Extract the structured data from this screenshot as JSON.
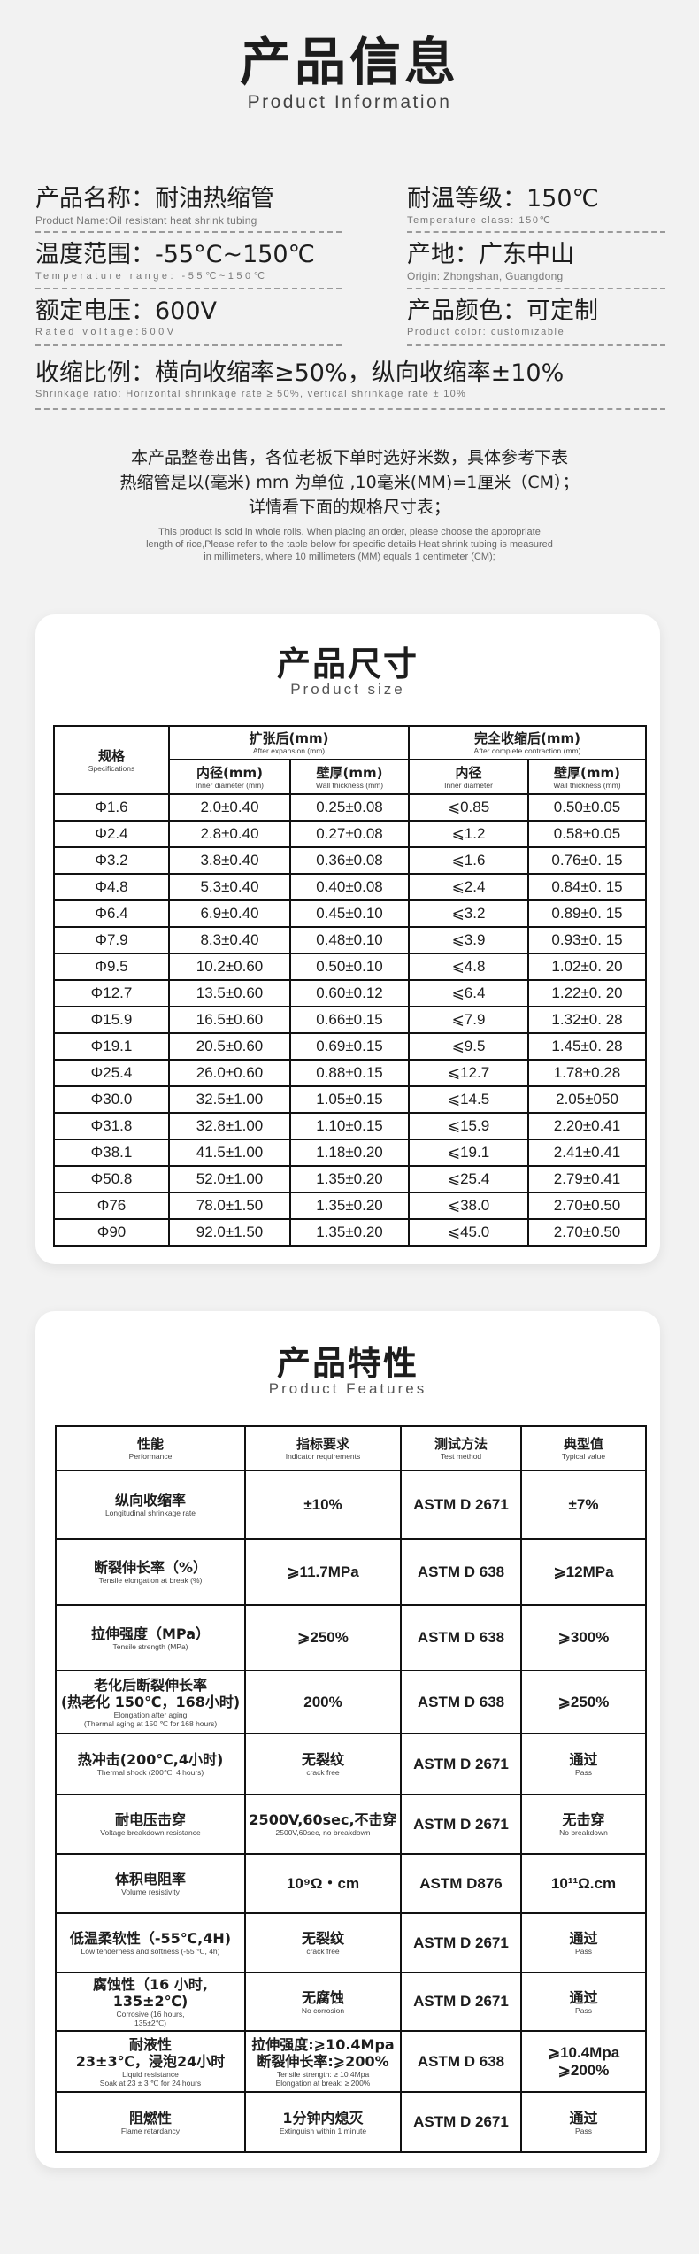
{
  "header": {
    "title": "产品信息",
    "subtitle": "Product Information"
  },
  "info": [
    {
      "label": "产品名称：耐油热缩管",
      "sub": "Product Name:Oil resistant heat shrink tubing"
    },
    {
      "label": "耐温等级：150℃",
      "sub": "Temperature class: 150℃"
    },
    {
      "label": "温度范围：-55°C~150℃",
      "sub": "Temperature range: -55℃~150℃"
    },
    {
      "label": "产地：广东中山",
      "sub": "Origin: Zhongshan, Guangdong"
    },
    {
      "label": "额定电压：600V",
      "sub": "Rated voltage:600V"
    },
    {
      "label": "产品颜色：可定制",
      "sub": "Product color: customizable"
    },
    {
      "label": "收缩比例：横向收缩率≥50%，纵向收缩率±10%",
      "sub": "Shrinkage ratio: Horizontal shrinkage rate ≥ 50%, vertical shrinkage rate ± 10%"
    }
  ],
  "notice": {
    "cn": [
      "本产品整卷出售，各位老板下单时选好米数，具体参考下表",
      "热缩管是以(毫米) mm 为单位 ,10毫米(MM)=1厘米（CM）；",
      "详情看下面的规格尺寸表；"
    ],
    "en": [
      "This product is sold in whole rolls. When placing an order, please choose the appropriate",
      "length of rice,Please refer to the table below for specific details Heat shrink tubing is measured",
      "in millimeters, where 10 millimeters (MM) equals 1 centimeter (CM);"
    ]
  },
  "size_section": {
    "title": "产品尺寸",
    "subtitle": "Product size",
    "headers": {
      "spec": {
        "cn": "规格",
        "en": "Specifications"
      },
      "expanded": {
        "cn": "扩张后(mm)",
        "en": "After expansion (mm)"
      },
      "recovered": {
        "cn": "完全收缩后(mm)",
        "en": "After complete contraction (mm)"
      },
      "exp_id": {
        "cn": "内径(mm)",
        "en": "Inner diameter (mm)"
      },
      "exp_wall": {
        "cn": "壁厚(mm)",
        "en": "Wall thickness (mm)"
      },
      "rec_id": {
        "cn": "内径",
        "en": "Inner diameter"
      },
      "rec_wall": {
        "cn": "壁厚(mm)",
        "en": "Wall thickness (mm)"
      }
    },
    "rows": [
      [
        "Φ1.6",
        "2.0±0.40",
        "0.25±0.08",
        "⩽0.85",
        "0.50±0.05"
      ],
      [
        "Φ2.4",
        "2.8±0.40",
        "0.27±0.08",
        "⩽1.2",
        "0.58±0.05"
      ],
      [
        "Φ3.2",
        "3.8±0.40",
        "0.36±0.08",
        "⩽1.6",
        "0.76±0. 15"
      ],
      [
        "Φ4.8",
        "5.3±0.40",
        "0.40±0.08",
        "⩽2.4",
        "0.84±0. 15"
      ],
      [
        "Φ6.4",
        "6.9±0.40",
        "0.45±0.10",
        "⩽3.2",
        "0.89±0. 15"
      ],
      [
        "Φ7.9",
        "8.3±0.40",
        "0.48±0.10",
        "⩽3.9",
        "0.93±0. 15"
      ],
      [
        "Φ9.5",
        "10.2±0.60",
        "0.50±0.10",
        "⩽4.8",
        "1.02±0. 20"
      ],
      [
        "Φ12.7",
        "13.5±0.60",
        "0.60±0.12",
        "⩽6.4",
        "1.22±0. 20"
      ],
      [
        "Φ15.9",
        "16.5±0.60",
        "0.66±0.15",
        "⩽7.9",
        "1.32±0. 28"
      ],
      [
        "Φ19.1",
        "20.5±0.60",
        "0.69±0.15",
        "⩽9.5",
        "1.45±0. 28"
      ],
      [
        "Φ25.4",
        "26.0±0.60",
        "0.88±0.15",
        "⩽12.7",
        "1.78±0.28"
      ],
      [
        "Φ30.0",
        "32.5±1.00",
        "1.05±0.15",
        "⩽14.5",
        "2.05±050"
      ],
      [
        "Φ31.8",
        "32.8±1.00",
        "1.10±0.15",
        "⩽15.9",
        "2.20±0.41"
      ],
      [
        "Φ38.1",
        "41.5±1.00",
        "1.18±0.20",
        "⩽19.1",
        "2.41±0.41"
      ],
      [
        "Φ50.8",
        "52.0±1.00",
        "1.35±0.20",
        "⩽25.4",
        "2.79±0.41"
      ],
      [
        "Φ76",
        "78.0±1.50",
        "1.35±0.20",
        "⩽38.0",
        "2.70±0.50"
      ],
      [
        "Φ90",
        "92.0±1.50",
        "1.35±0.20",
        "⩽45.0",
        "2.70±0.50"
      ]
    ]
  },
  "feature_section": {
    "title": "产品特性",
    "subtitle": "Product Features",
    "headers": [
      {
        "cn": "性能",
        "en": "Performance"
      },
      {
        "cn": "指标要求",
        "en": "Indicator requirements"
      },
      {
        "cn": "测试方法",
        "en": "Test method"
      },
      {
        "cn": "典型值",
        "en": "Typical value"
      }
    ],
    "rows": [
      {
        "perf": [
          "纵向收缩率"
        ],
        "perf_en": [
          "Longitudinal shrinkage rate"
        ],
        "req": [
          "±10%"
        ],
        "req_en": [],
        "method": "ASTM D 2671",
        "typ": [
          "±7%"
        ],
        "typ_en": ""
      },
      {
        "perf": [
          "断裂伸长率（%）"
        ],
        "perf_en": [
          "Tensile elongation at break (%)"
        ],
        "req": [
          "⩾11.7MPa"
        ],
        "req_en": [],
        "method": "ASTM D 638",
        "typ": [
          "⩾12MPa"
        ],
        "typ_en": ""
      },
      {
        "perf": [
          "拉伸强度（MPa）"
        ],
        "perf_en": [
          "Tensile strength (MPa)"
        ],
        "req": [
          "⩾250%"
        ],
        "req_en": [],
        "method": "ASTM D 638",
        "typ": [
          "⩾300%"
        ],
        "typ_en": ""
      },
      {
        "perf": [
          "老化后断裂伸长率",
          "(热老化 150℃，168小时)"
        ],
        "perf_en": [
          "Elongation after aging",
          "(Thermal aging at 150 ℃ for 168 hours)"
        ],
        "req": [
          "200%"
        ],
        "req_en": [],
        "method": "ASTM D 638",
        "typ": [
          "⩾250%"
        ],
        "typ_en": ""
      },
      {
        "perf": [
          "热冲击(200℃,4小时)"
        ],
        "perf_en": [
          "Thermal shock (200℃, 4 hours)"
        ],
        "req": [
          "无裂纹"
        ],
        "req_en": [
          "crack free"
        ],
        "method": "ASTM D 2671",
        "typ": [
          "通过"
        ],
        "typ_en": "Pass"
      },
      {
        "perf": [
          "耐电压击穿"
        ],
        "perf_en": [
          "Voltage breakdown resistance"
        ],
        "req": [
          "2500V,60sec,不击穿"
        ],
        "req_en": [
          "2500V,60sec, no breakdown"
        ],
        "method": "ASTM D 2671",
        "typ": [
          "无击穿"
        ],
        "typ_en": "No breakdown"
      },
      {
        "perf": [
          "体积电阻率"
        ],
        "perf_en": [
          "Volume resistivity"
        ],
        "req": [
          "10⁹Ω・cm"
        ],
        "req_en": [],
        "method": "ASTM D876",
        "typ": [
          "10¹¹Ω.cm"
        ],
        "typ_en": ""
      },
      {
        "perf": [
          "低温柔软性（-55℃,4H)"
        ],
        "perf_en": [
          "Low tenderness and softness (-55 ℃, 4h)"
        ],
        "req": [
          "无裂纹"
        ],
        "req_en": [
          "crack free"
        ],
        "method": "ASTM D 2671",
        "typ": [
          "通过"
        ],
        "typ_en": "Pass"
      },
      {
        "perf": [
          "腐蚀性（16 小时,",
          "135±2℃)"
        ],
        "perf_en": [
          "Corrosive (16 hours,",
          "135±2℃)"
        ],
        "req": [
          "无腐蚀"
        ],
        "req_en": [
          "No corrosion"
        ],
        "method": "ASTM D 2671",
        "typ": [
          "通过"
        ],
        "typ_en": "Pass"
      },
      {
        "perf": [
          "耐液性",
          "23±3℃，浸泡24小时"
        ],
        "perf_en": [
          "Liquid resistance",
          "Soak at 23 ± 3 ℃ for 24 hours"
        ],
        "req": [
          "拉伸强度:⩾10.4Mpa",
          "断裂伸长率:⩾200%"
        ],
        "req_en": [
          "Tensile strength: ≥ 10.4Mpa",
          "Elongation at break: ≥ 200%"
        ],
        "method": "ASTM D 638",
        "typ": [
          "⩾10.4Mpa",
          "⩾200%"
        ],
        "typ_en": ""
      },
      {
        "perf": [
          "阻燃性"
        ],
        "perf_en": [
          "Flame retardancy"
        ],
        "req": [
          "1分钟内熄灭"
        ],
        "req_en": [
          "Extinguish within 1 minute"
        ],
        "method": "ASTM D 2671",
        "typ": [
          "通过"
        ],
        "typ_en": "Pass"
      }
    ]
  }
}
